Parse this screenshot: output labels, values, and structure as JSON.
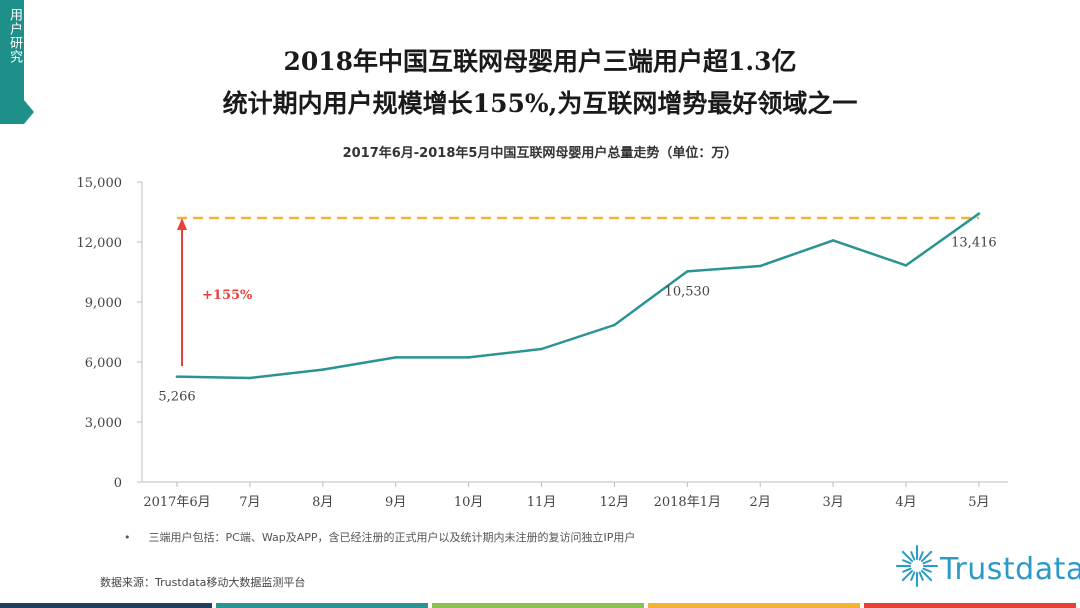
{
  "side_tab": {
    "label": "用户研究",
    "color": "#1f8f8a"
  },
  "title_line1": "2018年中国互联网母婴用户三端用户超1.3亿",
  "title_line2": "统计期内用户规模增长155%,为互联网增势最好领域之一",
  "chart_data": {
    "type": "line",
    "title": "2017年6月-2018年5月中国互联网母婴用户总量走势（单位：万）",
    "categories": [
      "2017年6月",
      "7月",
      "8月",
      "9月",
      "10月",
      "11月",
      "12月",
      "2018年1月",
      "2月",
      "3月",
      "4月",
      "5月"
    ],
    "series": [
      {
        "name": "母婴用户总量",
        "values": [
          5266,
          5200,
          5620,
          6230,
          6230,
          6650,
          7850,
          10530,
          10800,
          12080,
          10830,
          13416
        ],
        "color": "#2a9393"
      }
    ],
    "y_ticks": [
      0,
      3000,
      6000,
      9000,
      12000,
      15000
    ],
    "y_tick_labels": [
      "0",
      "3,000",
      "6,000",
      "9,000",
      "12,000",
      "15,000"
    ],
    "ylim": [
      0,
      15000
    ],
    "data_labels": [
      {
        "index": 0,
        "text": "5,266"
      },
      {
        "index": 7,
        "text": "10,530"
      },
      {
        "index": 11,
        "text": "13,416"
      }
    ],
    "reference_line": {
      "value": 13200,
      "color": "#f5b335"
    },
    "growth_arrow": {
      "from": 5800,
      "to": 13200,
      "label": "+155%",
      "color": "#e8413b"
    }
  },
  "note": {
    "bullet": "•",
    "text": "三端用户包括：PC端、Wap及APP，含已经注册的正式用户以及统计期内未注册的复访问独立IP用户"
  },
  "source": "数据来源：Trustdata移动大数据监测平台",
  "logo": {
    "text": "Trustdata",
    "color": "#2c9ac6"
  },
  "bottom_bar_colors": [
    "#1f3f5c",
    "#2a9393",
    "#8cc152",
    "#f5b335",
    "#e8413b"
  ]
}
